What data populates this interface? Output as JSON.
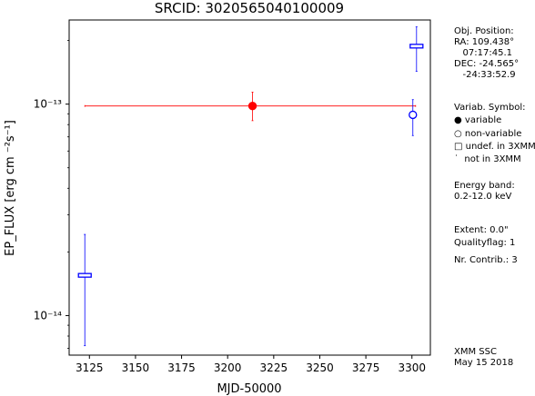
{
  "chart_data": {
    "type": "scatter",
    "title": "SRCID: 3020565040100009",
    "xlabel": "MJD-50000",
    "ylabel": "EP_FLUX [erg cm ⁻²s⁻¹]",
    "x_ticks": [
      3125,
      3150,
      3175,
      3200,
      3225,
      3250,
      3275,
      3300
    ],
    "xlim": [
      3114,
      3310
    ],
    "ylim": [
      6.5e-15,
      2.5e-13
    ],
    "y_scale": "log",
    "y_ticks": [
      {
        "value": 1e-14,
        "label": "10⁻¹⁴"
      },
      {
        "value": 1e-13,
        "label": "10⁻¹³"
      }
    ],
    "grid": false,
    "points": [
      {
        "x": 3122.5,
        "y": 1.55e-14,
        "y_low": 7.2e-15,
        "y_high": 2.42e-14,
        "x_low": 3122.5,
        "x_high": 3122.5,
        "marker": "square-open",
        "color": "#0000ff"
      },
      {
        "x": 3213.5,
        "y": 9.8e-14,
        "y_low": 8.35e-14,
        "y_high": 1.14e-13,
        "x_low": 3122.5,
        "x_high": 3302,
        "marker": "circle-filled",
        "color": "#ff0000"
      },
      {
        "x": 3300.5,
        "y": 8.9e-14,
        "y_low": 7.1e-14,
        "y_high": 1.05e-13,
        "x_low": 3300.5,
        "x_high": 3300.5,
        "marker": "circle-open",
        "color": "#0000ff"
      },
      {
        "x": 3302.5,
        "y": 1.88e-13,
        "y_low": 1.43e-13,
        "y_high": 2.32e-13,
        "x_low": 3302.5,
        "x_high": 3302.5,
        "marker": "square-open",
        "color": "#0000ff"
      }
    ]
  },
  "sidebar": {
    "position": "Obj. Position:\nRA: 109.438°\n   07:17:45.1\nDEC: -24.565°\n   -24:33:52.9",
    "symbols_title": "Variab. Symbol:",
    "symbol_variable": "● variable",
    "symbol_nonvariable": "○ non-variable",
    "symbol_undef": "□ undef. in 3XMM",
    "symbol_notin": "˙  not in 3XMM",
    "energy": "Energy band:\n0.2-12.0 keV",
    "extent": "Extent: 0.0\"",
    "quality": "Qualityflag: 1",
    "contrib": "Nr. Contrib.: 3",
    "footer": "XMM SSC\nMay 15 2018"
  }
}
